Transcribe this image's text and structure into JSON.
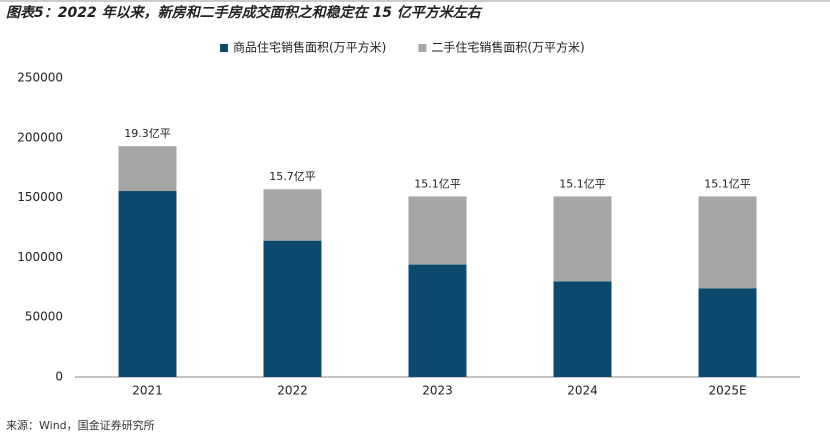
{
  "chart_data": {
    "type": "stacked_bar",
    "title": "图表5：2022 年以来，新房和二手房成交面积之和稳定在 15 亿平方米左右",
    "source": "来源：Wind，国金证券研究所",
    "categories": [
      "2021",
      "2022",
      "2023",
      "2024",
      "2025E"
    ],
    "series": [
      {
        "name": "商品住宅销售面积(万平方米)",
        "color": "#0b4a6e",
        "values": [
          155500,
          114000,
          94000,
          80000,
          74000
        ]
      },
      {
        "name": "二手住宅销售面积(万平方米)",
        "color": "#a6a6a6",
        "values": [
          37500,
          43000,
          57000,
          71000,
          77000
        ]
      }
    ],
    "total_labels": [
      "19.3亿平",
      "15.7亿平",
      "15.1亿平",
      "15.1亿平",
      "15.1亿平"
    ],
    "ylim": [
      0,
      250000
    ],
    "yticks": [
      0,
      50000,
      100000,
      150000,
      200000,
      250000
    ],
    "grid": false
  }
}
